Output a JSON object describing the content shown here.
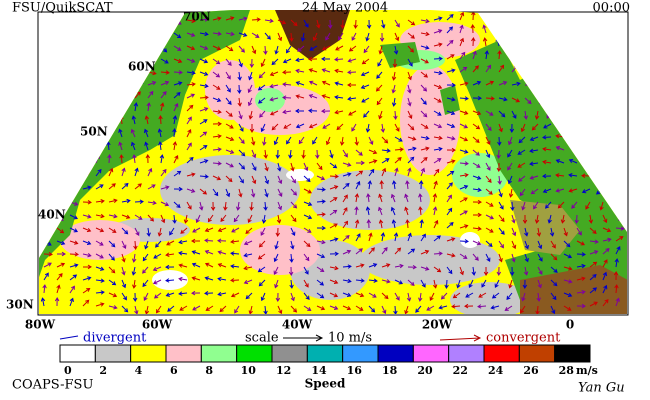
{
  "header": {
    "left": "FSU/QuikSCAT",
    "date": "24 May 2004",
    "time": "00:00"
  },
  "map": {
    "lat_labels": [
      "70N",
      "60N",
      "50N",
      "40N",
      "30N"
    ],
    "lon_labels": [
      "80W",
      "60W",
      "40W",
      "20W",
      "0"
    ]
  },
  "legend": {
    "divergent": "divergent",
    "scale": "scale",
    "scale_value": "10 m/s",
    "convergent": "convergent"
  },
  "colorbar": {
    "colors": [
      "#ffffff",
      "#c8c8c8",
      "#ffff00",
      "#ffc0c8",
      "#90ff90",
      "#00e000",
      "#909090",
      "#00b0b0",
      "#3399ff",
      "#0000c0",
      "#ff66ff",
      "#b080ff",
      "#ff0000",
      "#c04000",
      "#000000"
    ],
    "labels": [
      0,
      2,
      4,
      6,
      8,
      10,
      12,
      14,
      16,
      18,
      20,
      22,
      24,
      26,
      28
    ],
    "unit": "m/s",
    "title": "Speed"
  },
  "footer": {
    "left": "COAPS-FSU",
    "right": "Yan Gu"
  }
}
